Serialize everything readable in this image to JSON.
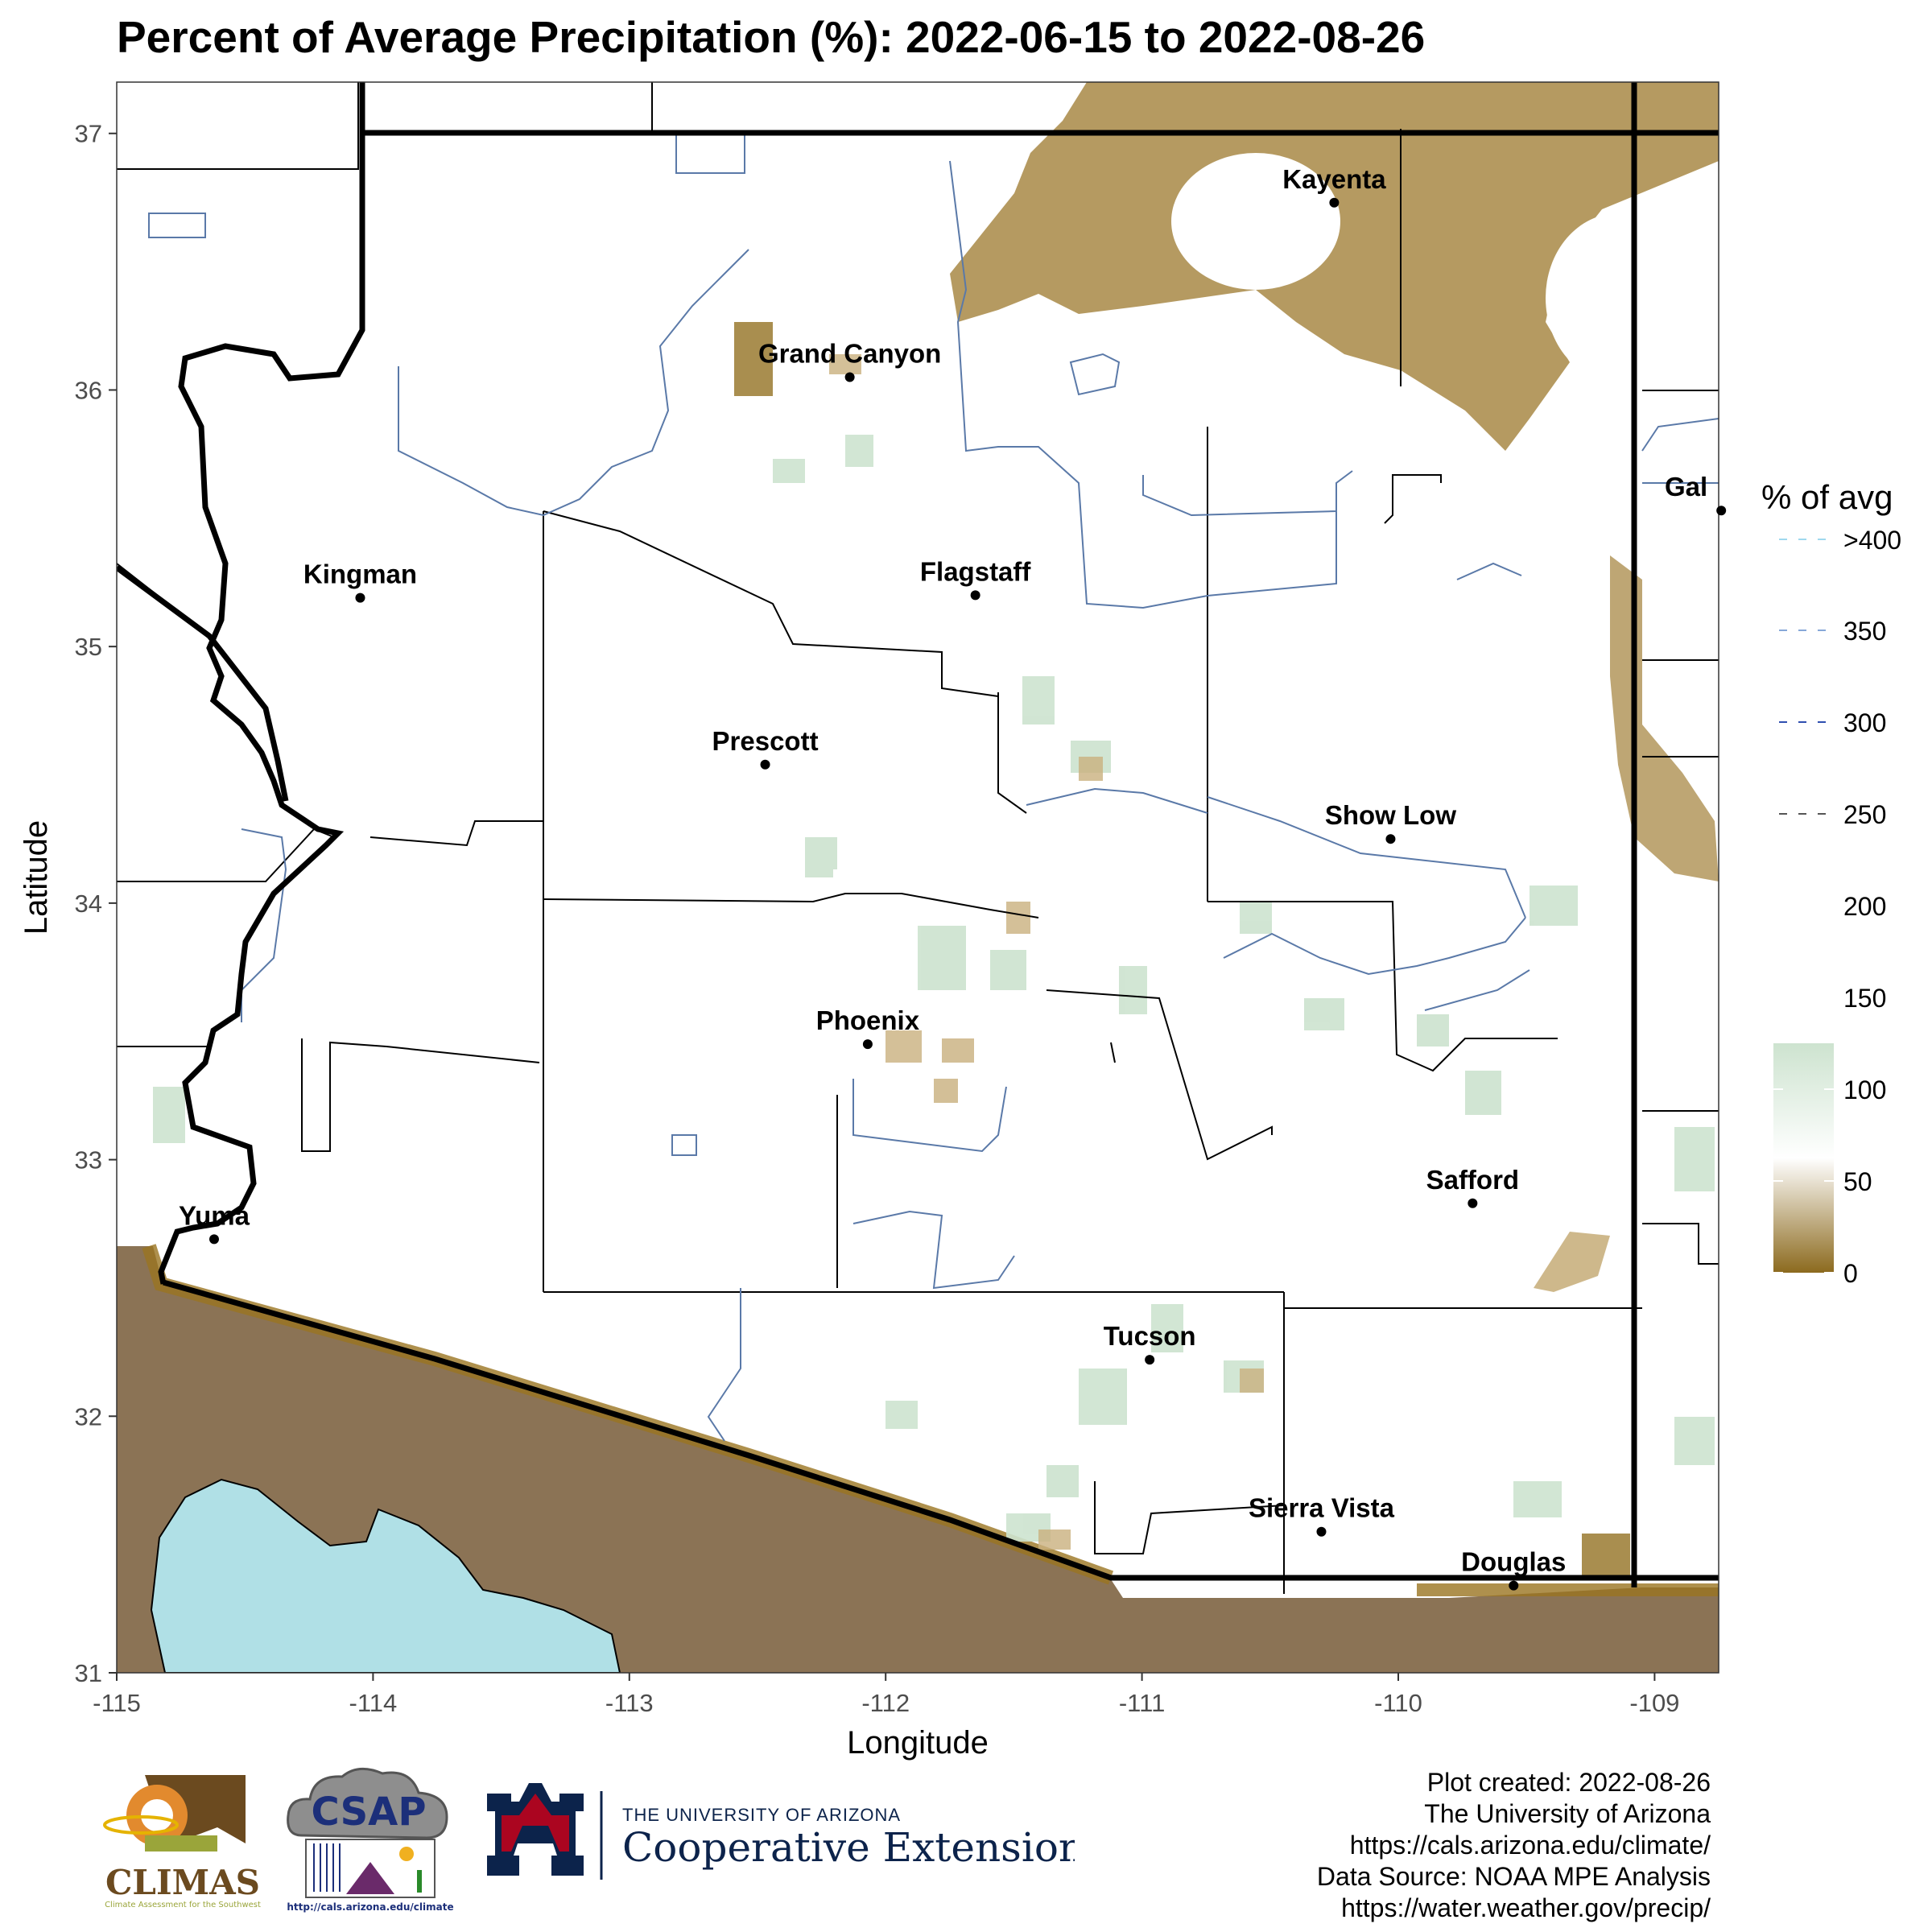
{
  "title": "Percent of Average Precipitation (%): 2022-06-15 to 2022-08-26",
  "colors": {
    "dry": "#8c6a1e",
    "mid": "#ffffff",
    "wet": "#cde3cf",
    "mexico": "#8b7355",
    "water": "#b0e0e6",
    "border": "#000000",
    "river": "#5a79a8"
  },
  "axes": {
    "xlabel": "Longitude",
    "ylabel": "Latitude",
    "x_ticks": [
      "-115",
      "-114",
      "-113",
      "-112",
      "-111",
      "-110",
      "-109"
    ],
    "y_ticks": [
      "37",
      "36",
      "35",
      "34",
      "33",
      "32",
      "31"
    ],
    "x_range": [
      -115,
      -108.75
    ],
    "y_range": [
      31,
      37.2
    ]
  },
  "legend": {
    "title": "% of avg",
    "labels": [
      ">400",
      "350",
      "300",
      "250",
      "200",
      "150",
      "100",
      "50",
      "0"
    ]
  },
  "cities": [
    {
      "name": "Kayenta",
      "lon": -110.25,
      "lat": 36.73
    },
    {
      "name": "Grand Canyon",
      "lon": -112.14,
      "lat": 36.05
    },
    {
      "name": "Kingman",
      "lon": -114.05,
      "lat": 35.19
    },
    {
      "name": "Flagstaff",
      "lon": -111.65,
      "lat": 35.2
    },
    {
      "name": "Gal",
      "lon": -108.74,
      "lat": 35.53
    },
    {
      "name": "Prescott",
      "lon": -112.47,
      "lat": 34.54
    },
    {
      "name": "Show Low",
      "lon": -110.03,
      "lat": 34.25
    },
    {
      "name": "Phoenix",
      "lon": -112.07,
      "lat": 33.45
    },
    {
      "name": "Safford",
      "lon": -109.71,
      "lat": 32.83
    },
    {
      "name": "Yuma",
      "lon": -114.62,
      "lat": 32.69
    },
    {
      "name": "Tucson",
      "lon": -110.97,
      "lat": 32.22
    },
    {
      "name": "Sierra Vista",
      "lon": -110.3,
      "lat": 31.55
    },
    {
      "name": "Douglas",
      "lon": -109.55,
      "lat": 31.34
    }
  ],
  "credits": [
    "Plot created: 2022-08-26",
    "The University of Arizona",
    "https://cals.arizona.edu/climate/",
    "Data Source: NOAA MPE Analysis",
    "https://water.weather.gov/precip/"
  ],
  "logos": {
    "climas": {
      "name": "CLIMAS",
      "subtitle": "Climate Assessment for the Southwest"
    },
    "csap": {
      "name": "CSAP",
      "url": "http://cals.arizona.edu/climate"
    },
    "ua": {
      "line1": "THE UNIVERSITY OF ARIZONA",
      "line2": "Cooperative Extension"
    }
  }
}
